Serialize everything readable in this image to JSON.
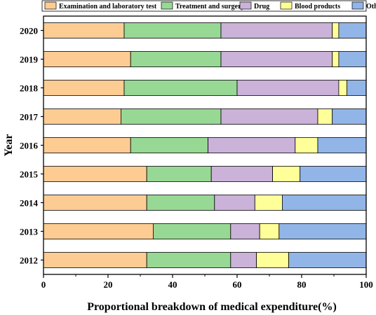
{
  "chart_data": {
    "type": "bar",
    "orientation": "horizontal",
    "stacked": true,
    "title": "",
    "xlabel": "Proportional breakdown of medical expenditure(%)",
    "ylabel": "Year",
    "xlim": [
      0,
      100
    ],
    "xticks": [
      "0",
      "20",
      "40",
      "60",
      "80",
      "100"
    ],
    "grid": false,
    "legend_position": "top",
    "categories": [
      "2020",
      "2019",
      "2018",
      "2017",
      "2016",
      "2015",
      "2014",
      "2013",
      "2012"
    ],
    "series": [
      {
        "name": "Examination and laboratory test",
        "color": "#FDCC93",
        "values": [
          25,
          27,
          25,
          24,
          27,
          32,
          32,
          34,
          32
        ]
      },
      {
        "name": "Treatment and surgery",
        "color": "#98D895",
        "values": [
          30,
          28,
          35,
          31,
          24,
          20,
          21,
          24,
          26
        ]
      },
      {
        "name": "Drug",
        "color": "#CBB2D9",
        "values": [
          34.5,
          34.5,
          31.5,
          30,
          27,
          19,
          12.5,
          9,
          8
        ]
      },
      {
        "name": "Blood products",
        "color": "#FFFF99",
        "values": [
          2,
          2,
          2.5,
          4.5,
          7,
          8.5,
          8.5,
          6,
          10
        ]
      },
      {
        "name": "Others",
        "color": "#92B5E8",
        "values": [
          8.5,
          8.5,
          6,
          10.5,
          15,
          20.5,
          26,
          27,
          24
        ]
      }
    ]
  }
}
